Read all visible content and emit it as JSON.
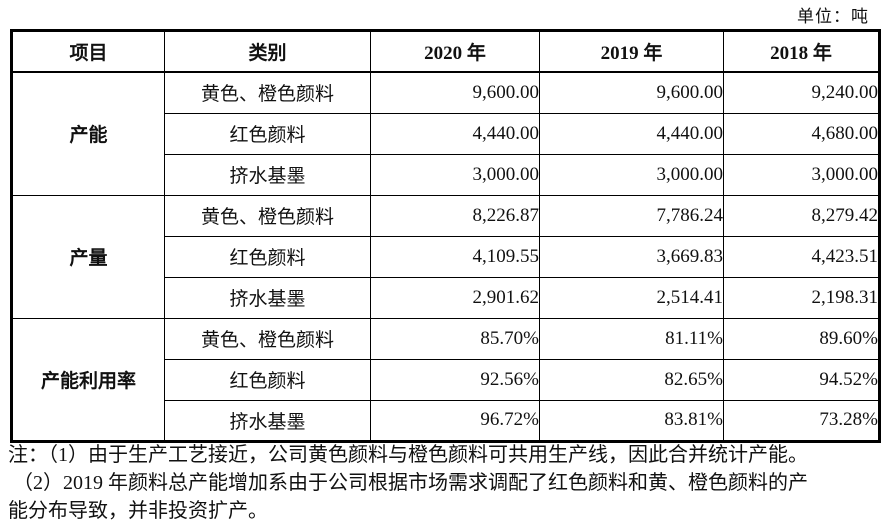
{
  "unit_label": "单位：吨",
  "table": {
    "headers": [
      "项目",
      "类别",
      "2020 年",
      "2019 年",
      "2018 年"
    ],
    "groups": [
      {
        "name": "产能",
        "rows": [
          {
            "category": "黄色、橙色颜料",
            "values": [
              "9,600.00",
              "9,600.00",
              "9,240.00"
            ]
          },
          {
            "category": "红色颜料",
            "values": [
              "4,440.00",
              "4,440.00",
              "4,680.00"
            ]
          },
          {
            "category": "挤水基墨",
            "values": [
              "3,000.00",
              "3,000.00",
              "3,000.00"
            ]
          }
        ]
      },
      {
        "name": "产量",
        "rows": [
          {
            "category": "黄色、橙色颜料",
            "values": [
              "8,226.87",
              "7,786.24",
              "8,279.42"
            ]
          },
          {
            "category": "红色颜料",
            "values": [
              "4,109.55",
              "3,669.83",
              "4,423.51"
            ]
          },
          {
            "category": "挤水基墨",
            "values": [
              "2,901.62",
              "2,514.41",
              "2,198.31"
            ]
          }
        ]
      },
      {
        "name": "产能利用率",
        "rows": [
          {
            "category": "黄色、橙色颜料",
            "values": [
              "85.70%",
              "81.11%",
              "89.60%"
            ]
          },
          {
            "category": "红色颜料",
            "values": [
              "92.56%",
              "82.65%",
              "94.52%"
            ]
          },
          {
            "category": "挤水基墨",
            "values": [
              "96.72%",
              "83.81%",
              "73.28%"
            ]
          }
        ]
      }
    ]
  },
  "notes": {
    "lines": [
      "注：（1）由于生产工艺接近，公司黄色颜料与橙色颜料可共用生产线，因此合并统计产能。",
      "（2）2019 年颜料总产能增加系由于公司根据市场需求调配了红色颜料和黄、橙色颜料的产",
      "能分布导致，并非投资扩产。"
    ]
  },
  "colors": {
    "text": "#111111",
    "border": "#000000",
    "background": "#ffffff"
  }
}
